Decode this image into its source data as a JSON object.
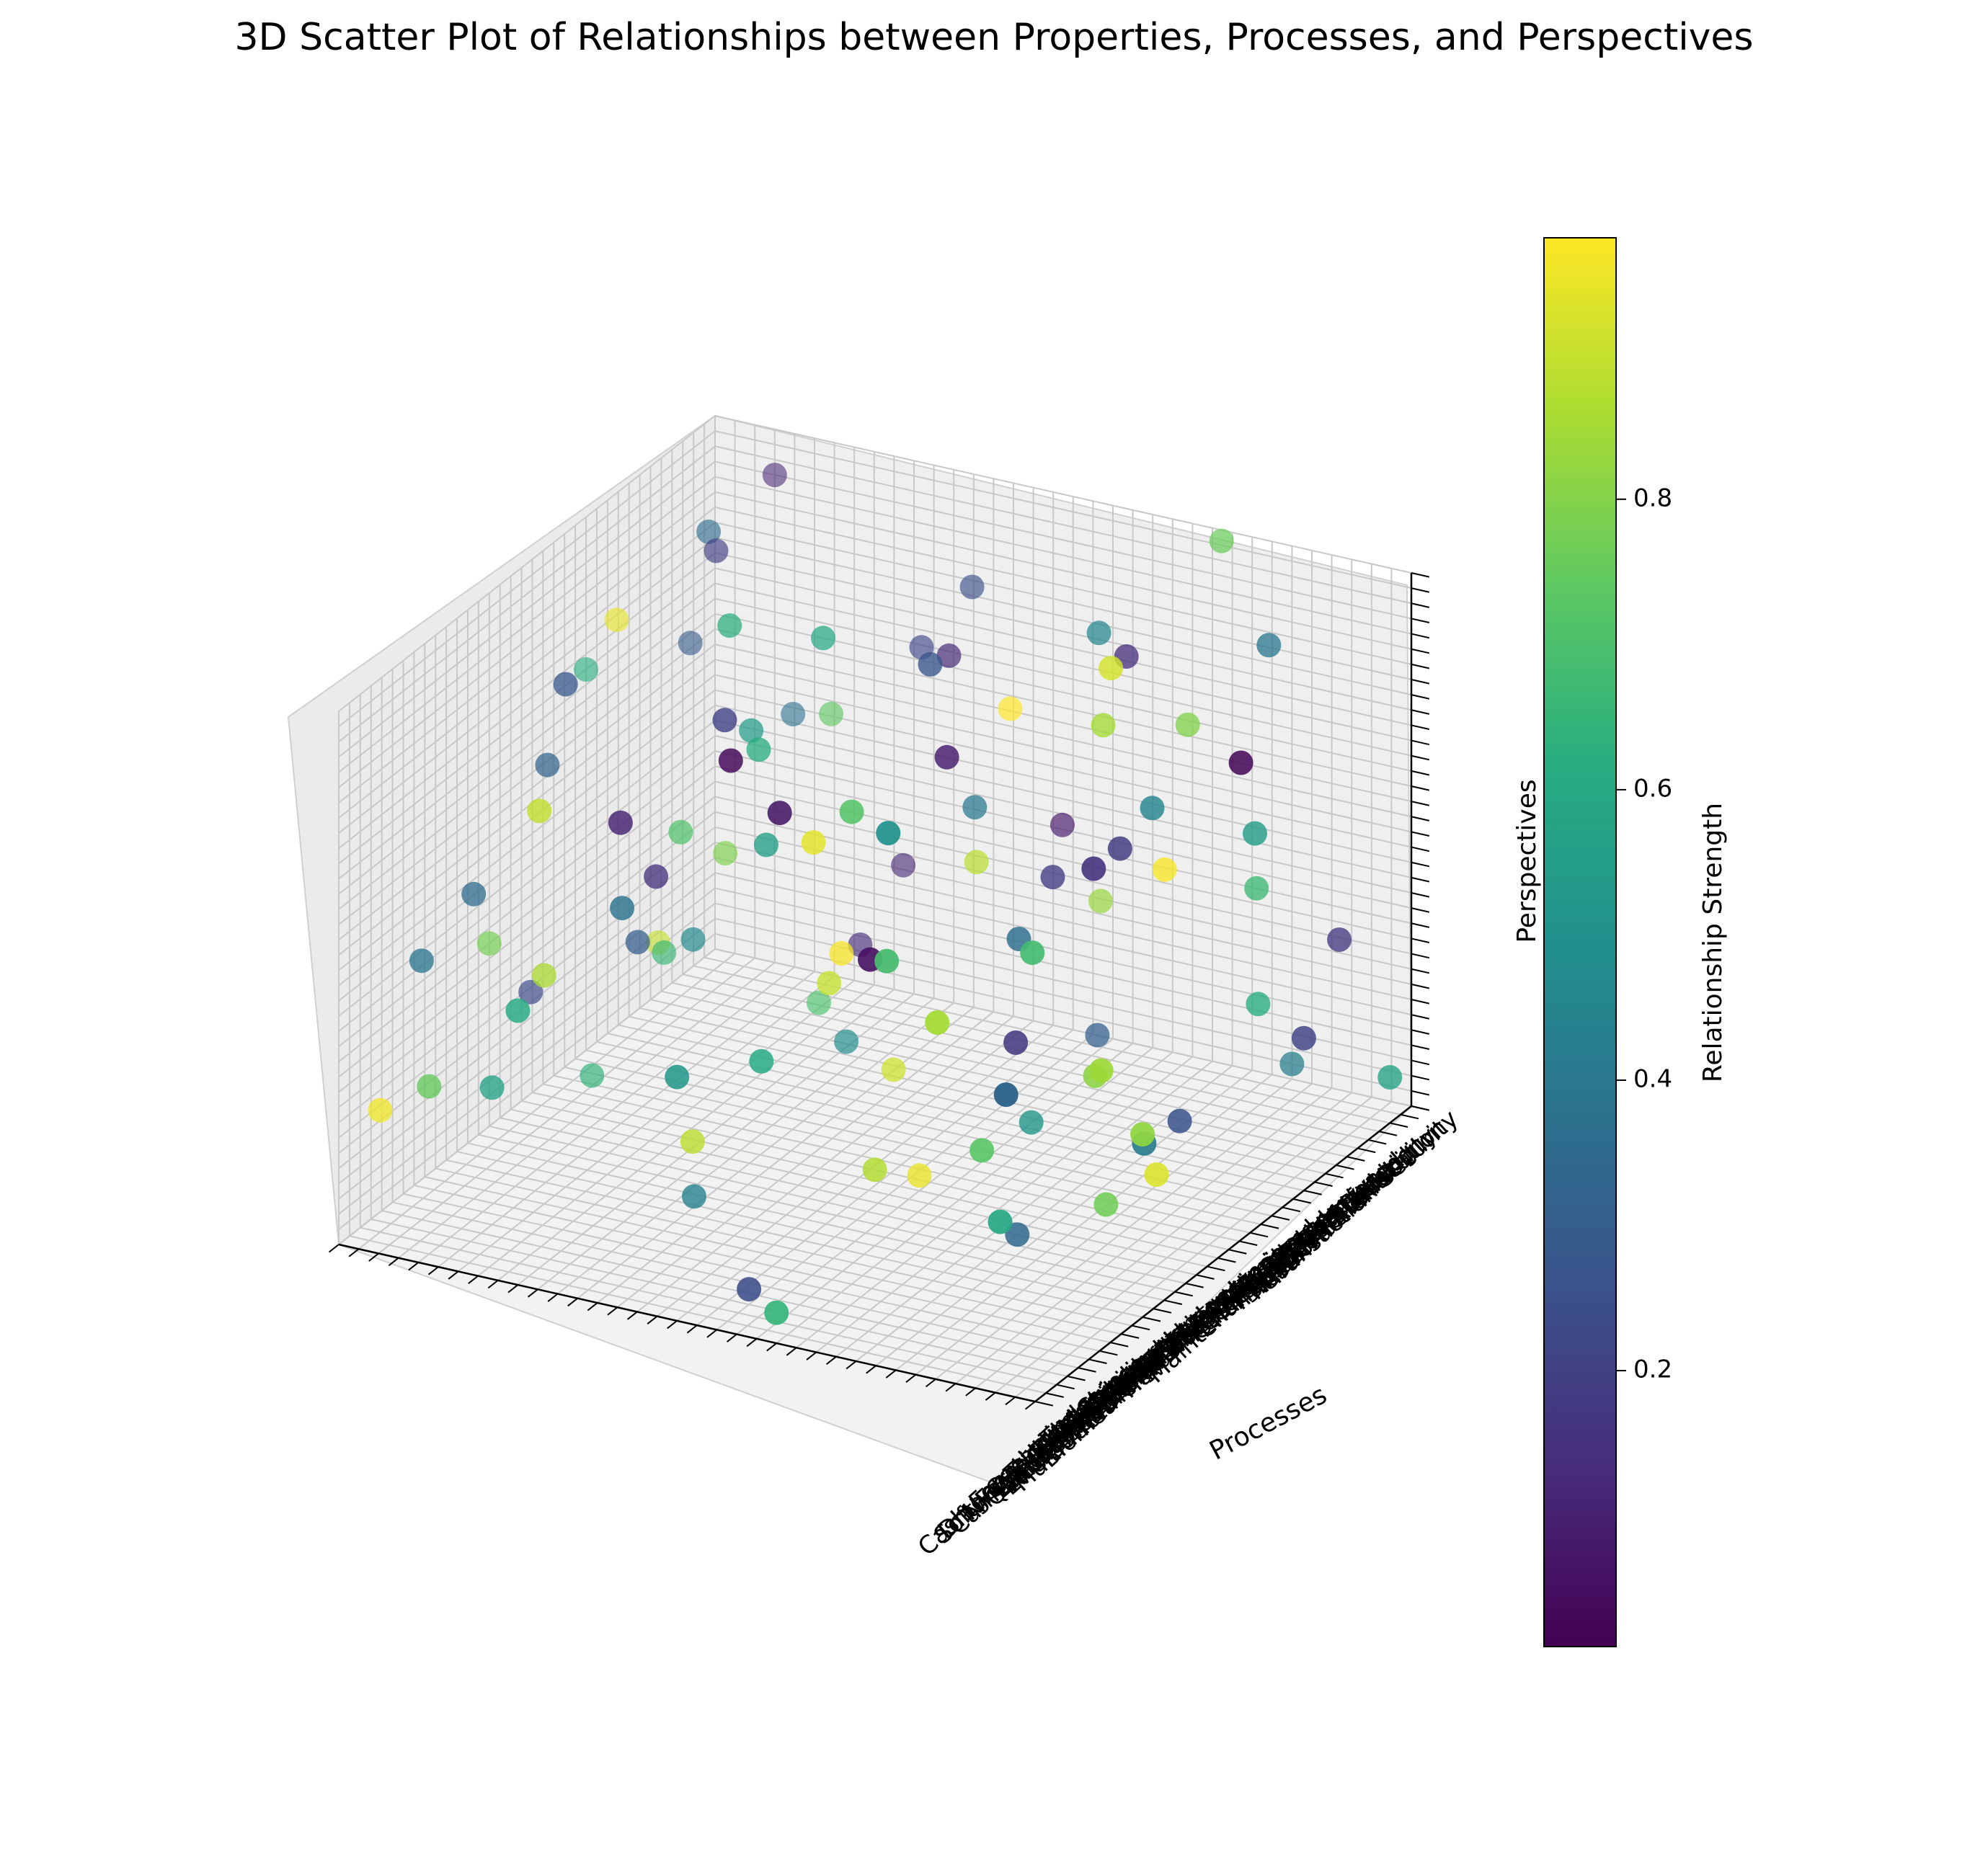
{
  "chart_data": {
    "type": "scatter",
    "projection": "3d",
    "title": "3D Scatter Plot of Relationships between Properties, Processes, and Perspectives",
    "xlabel": "",
    "ylabel": "Processes",
    "zlabel": "Perspectives",
    "colorbar": {
      "label": "Relationship Strength",
      "colormap": "viridis",
      "range": [
        0.01,
        0.98
      ],
      "ticks": [
        "0.2",
        "0.4",
        "0.6",
        "0.8"
      ],
      "tick_values": [
        0.2,
        0.4,
        0.6,
        0.8
      ]
    },
    "x_tick_labels": [
      "Transaction Security",
      "User Authentication",
      "Network Availability",
      "Machine Location",
      "Cash Stocking",
      "Transaction Speed",
      "User Interface",
      "Fraud Detection",
      "Maintenance Frequency",
      "Energy Efficiency",
      "Card Reader",
      "Cash Dispenser",
      "Receipt Printer",
      "Keypad",
      "Screen",
      "Hardware Security",
      "Traffic Analysis",
      "Biometric Authentication",
      "Multi-factor Authentication",
      "Foreign Currency",
      "Contactless Payment",
      "Mobile Integration",
      "Thermal Printing",
      "Environmental Impact",
      "Vandalism Protection",
      "Customer Support",
      "Queue Management",
      "Language Support",
      "Accessibility",
      "Camera Surveillance",
      "Anti-Skimming",
      "EMV Chip",
      "NFC Technology",
      "Software Updates",
      "Diagnostic Tools",
      "Cash Forecasting"
    ],
    "grid": true,
    "legend": "none",
    "points": [
      {
        "x": 3,
        "y": 12,
        "z": 25,
        "c": 0.22
      },
      {
        "x": 5,
        "y": 30,
        "z": 8,
        "c": 0.61
      },
      {
        "x": 8,
        "y": 4,
        "z": 33,
        "c": 0.35
      },
      {
        "x": 1,
        "y": 18,
        "z": 14,
        "c": 0.08
      },
      {
        "x": 12,
        "y": 26,
        "z": 29,
        "c": 0.85
      },
      {
        "x": 15,
        "y": 7,
        "z": 11,
        "c": 0.47
      },
      {
        "x": 20,
        "y": 33,
        "z": 6,
        "c": 0.93
      },
      {
        "x": 24,
        "y": 10,
        "z": 21,
        "c": 0.15
      },
      {
        "x": 28,
        "y": 22,
        "z": 31,
        "c": 0.72
      },
      {
        "x": 31,
        "y": 2,
        "z": 17,
        "c": 0.39
      },
      {
        "x": 2,
        "y": 35,
        "z": 3,
        "c": 0.58
      },
      {
        "x": 6,
        "y": 15,
        "z": 27,
        "c": 0.12
      },
      {
        "x": 10,
        "y": 28,
        "z": 19,
        "c": 0.97
      },
      {
        "x": 14,
        "y": 5,
        "z": 9,
        "c": 0.66
      },
      {
        "x": 17,
        "y": 20,
        "z": 34,
        "c": 0.27
      },
      {
        "x": 22,
        "y": 31,
        "z": 13,
        "c": 0.81
      },
      {
        "x": 26,
        "y": 13,
        "z": 2,
        "c": 0.44
      },
      {
        "x": 30,
        "y": 24,
        "z": 23,
        "c": 0.05
      },
      {
        "x": 33,
        "y": 9,
        "z": 30,
        "c": 0.89
      },
      {
        "x": 35,
        "y": 17,
        "z": 16,
        "c": 0.53
      },
      {
        "x": 4,
        "y": 8,
        "z": 20,
        "c": 0.74
      },
      {
        "x": 7,
        "y": 23,
        "z": 5,
        "c": 0.31
      },
      {
        "x": 11,
        "y": 1,
        "z": 28,
        "c": 0.95
      },
      {
        "x": 16,
        "y": 29,
        "z": 24,
        "c": 0.18
      },
      {
        "x": 19,
        "y": 11,
        "z": 35,
        "c": 0.63
      },
      {
        "x": 23,
        "y": 34,
        "z": 10,
        "c": 0.42
      },
      {
        "x": 27,
        "y": 6,
        "z": 15,
        "c": 0.86
      },
      {
        "x": 32,
        "y": 19,
        "z": 1,
        "c": 0.24
      },
      {
        "x": 34,
        "y": 27,
        "z": 26,
        "c": 0.69
      },
      {
        "x": 0,
        "y": 3,
        "z": 32,
        "c": 0.11
      },
      {
        "x": 9,
        "y": 32,
        "z": 22,
        "c": 0.55
      },
      {
        "x": 13,
        "y": 16,
        "z": 4,
        "c": 0.91
      },
      {
        "x": 18,
        "y": 25,
        "z": 18,
        "c": 0.36
      },
      {
        "x": 21,
        "y": 0,
        "z": 12,
        "c": 0.78
      },
      {
        "x": 25,
        "y": 14,
        "z": 33,
        "c": 0.2
      },
      {
        "x": 29,
        "y": 30,
        "z": 7,
        "c": 0.6
      },
      {
        "x": 3,
        "y": 21,
        "z": 11,
        "c": 0.83
      },
      {
        "x": 6,
        "y": 2,
        "z": 24,
        "c": 0.29
      },
      {
        "x": 10,
        "y": 12,
        "z": 3,
        "c": 0.48
      },
      {
        "x": 14,
        "y": 34,
        "z": 30,
        "c": 0.02
      },
      {
        "x": 18,
        "y": 8,
        "z": 20,
        "c": 0.71
      },
      {
        "x": 22,
        "y": 27,
        "z": 14,
        "c": 0.16
      },
      {
        "x": 26,
        "y": 19,
        "z": 27,
        "c": 0.94
      },
      {
        "x": 30,
        "y": 5,
        "z": 9,
        "c": 0.57
      },
      {
        "x": 34,
        "y": 33,
        "z": 19,
        "c": 0.33
      },
      {
        "x": 1,
        "y": 26,
        "z": 35,
        "c": 0.76
      },
      {
        "x": 5,
        "y": 10,
        "z": 6,
        "c": 0.13
      },
      {
        "x": 9,
        "y": 18,
        "z": 16,
        "c": 0.88
      },
      {
        "x": 13,
        "y": 29,
        "z": 25,
        "c": 0.45
      },
      {
        "x": 17,
        "y": 3,
        "z": 2,
        "c": 0.64
      },
      {
        "x": 21,
        "y": 23,
        "z": 31,
        "c": 0.09
      },
      {
        "x": 25,
        "y": 35,
        "z": 12,
        "c": 0.82
      },
      {
        "x": 29,
        "y": 11,
        "z": 22,
        "c": 0.38
      },
      {
        "x": 33,
        "y": 1,
        "z": 8,
        "c": 0.96
      },
      {
        "x": 2,
        "y": 14,
        "z": 29,
        "c": 0.25
      },
      {
        "x": 7,
        "y": 31,
        "z": 17,
        "c": 0.67
      },
      {
        "x": 11,
        "y": 6,
        "z": 34,
        "c": 0.19
      },
      {
        "x": 15,
        "y": 24,
        "z": 4,
        "c": 0.52
      },
      {
        "x": 19,
        "y": 16,
        "z": 13,
        "c": 0.9
      },
      {
        "x": 23,
        "y": 4,
        "z": 26,
        "c": 0.32
      },
      {
        "x": 27,
        "y": 28,
        "z": 10,
        "c": 0.73
      },
      {
        "x": 31,
        "y": 20,
        "z": 32,
        "c": 0.07
      },
      {
        "x": 35,
        "y": 9,
        "z": 18,
        "c": 0.6
      },
      {
        "x": 0,
        "y": 29,
        "z": 1,
        "c": 0.43
      },
      {
        "x": 4,
        "y": 17,
        "z": 23,
        "c": 0.98
      },
      {
        "x": 8,
        "y": 25,
        "z": 31,
        "c": 0.14
      },
      {
        "x": 12,
        "y": 7,
        "z": 15,
        "c": 0.79
      },
      {
        "x": 16,
        "y": 32,
        "z": 7,
        "c": 0.26
      },
      {
        "x": 20,
        "y": 13,
        "z": 28,
        "c": 0.62
      },
      {
        "x": 24,
        "y": 21,
        "z": 5,
        "c": 0.87
      },
      {
        "x": 28,
        "y": 3,
        "z": 20,
        "c": 0.35
      },
      {
        "x": 32,
        "y": 26,
        "z": 33,
        "c": 0.5
      },
      {
        "x": 3,
        "y": 33,
        "z": 12,
        "c": 0.17
      },
      {
        "x": 7,
        "y": 9,
        "z": 3,
        "c": 0.7
      },
      {
        "x": 11,
        "y": 19,
        "z": 21,
        "c": 0.41
      },
      {
        "x": 15,
        "y": 28,
        "z": 35,
        "c": 0.92
      },
      {
        "x": 19,
        "y": 1,
        "z": 8,
        "c": 0.23
      },
      {
        "x": 23,
        "y": 15,
        "z": 24,
        "c": 0.56
      },
      {
        "x": 27,
        "y": 34,
        "z": 17,
        "c": 0.84
      },
      {
        "x": 31,
        "y": 12,
        "z": 29,
        "c": 0.11
      },
      {
        "x": 35,
        "y": 22,
        "z": 2,
        "c": 0.65
      },
      {
        "x": 2,
        "y": 5,
        "z": 18,
        "c": 0.37
      },
      {
        "x": 6,
        "y": 27,
        "z": 26,
        "c": 0.8
      },
      {
        "x": 10,
        "y": 35,
        "z": 10,
        "c": 0.21
      },
      {
        "x": 14,
        "y": 13,
        "z": 32,
        "c": 0.59
      },
      {
        "x": 18,
        "y": 20,
        "z": 1,
        "c": 0.95
      },
      {
        "x": 22,
        "y": 8,
        "z": 15,
        "c": 0.3
      },
      {
        "x": 26,
        "y": 30,
        "z": 23,
        "c": 0.68
      },
      {
        "x": 30,
        "y": 17,
        "z": 34,
        "c": 0.04
      },
      {
        "x": 34,
        "y": 4,
        "z": 11,
        "c": 0.75
      },
      {
        "x": 5,
        "y": 22,
        "z": 30,
        "c": 0.46
      },
      {
        "x": 9,
        "y": 2,
        "z": 6,
        "c": 0.9
      },
      {
        "x": 13,
        "y": 24,
        "z": 19,
        "c": 0.18
      },
      {
        "x": 17,
        "y": 11,
        "z": 27,
        "c": 0.54
      },
      {
        "x": 21,
        "y": 31,
        "z": 4,
        "c": 0.77
      },
      {
        "x": 25,
        "y": 6,
        "z": 33,
        "c": 0.28
      },
      {
        "x": 29,
        "y": 18,
        "z": 14,
        "c": 0.61
      },
      {
        "x": 33,
        "y": 29,
        "z": 22,
        "c": 0.85
      },
      {
        "x": 1,
        "y": 10,
        "z": 9,
        "c": 0.12
      },
      {
        "x": 4,
        "y": 30,
        "z": 31,
        "c": 0.4
      },
      {
        "x": 12,
        "y": 0,
        "z": 25,
        "c": 0.63
      },
      {
        "x": 16,
        "y": 15,
        "z": 13,
        "c": 0.97
      },
      {
        "x": 20,
        "y": 26,
        "z": 0,
        "c": 0.34
      },
      {
        "x": 24,
        "y": 32,
        "z": 28,
        "c": 0.16
      },
      {
        "x": 28,
        "y": 14,
        "z": 7,
        "c": 0.88
      }
    ]
  }
}
